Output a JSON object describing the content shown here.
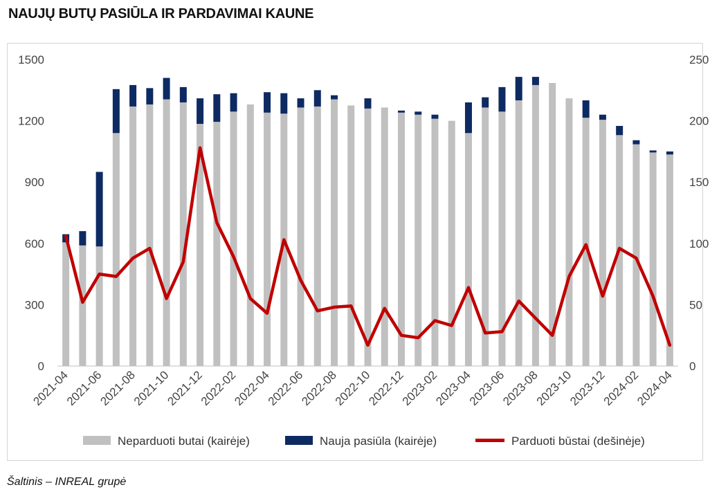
{
  "title": "NAUJŲ BUTŲ PASIŪLA IR PARDAVIMAI KAUNE",
  "source": "Šaltinis – INREAL grupė",
  "chart_data": {
    "type": "bar",
    "categories": [
      "2021-04",
      "2021-05",
      "2021-06",
      "2021-07",
      "2021-08",
      "2021-09",
      "2021-10",
      "2021-11",
      "2021-12",
      "2022-01",
      "2022-02",
      "2022-03",
      "2022-04",
      "2022-05",
      "2022-06",
      "2022-07",
      "2022-08",
      "2022-09",
      "2022-10",
      "2022-11",
      "2022-12",
      "2023-01",
      "2023-02",
      "2023-03",
      "2023-04",
      "2023-05",
      "2023-06",
      "2023-07",
      "2023-08",
      "2023-09",
      "2023-10",
      "2023-11",
      "2023-12",
      "2024-01",
      "2024-02",
      "2024-03",
      "2024-04"
    ],
    "tick_labels": [
      "2021-04",
      "2021-06",
      "2021-08",
      "2021-10",
      "2021-12",
      "2022-02",
      "2022-04",
      "2022-06",
      "2022-08",
      "2022-10",
      "2022-12",
      "2023-02",
      "2023-04",
      "2023-06",
      "2023-08",
      "2023-10",
      "2023-12",
      "2024-02",
      "2024-04"
    ],
    "series": [
      {
        "name": "Neparduoti butai (kairėje)",
        "axis": "left",
        "kind": "stacked-bar",
        "color": "#c0c0c0",
        "values": [
          605,
          590,
          585,
          1140,
          1270,
          1280,
          1305,
          1290,
          1185,
          1195,
          1245,
          1280,
          1240,
          1235,
          1265,
          1270,
          1305,
          1275,
          1260,
          1265,
          1240,
          1230,
          1210,
          1200,
          1140,
          1265,
          1245,
          1300,
          1375,
          1385,
          1310,
          1215,
          1205,
          1130,
          1085,
          1045,
          1035
        ]
      },
      {
        "name": "Nauja pasiūla (kairėje)",
        "axis": "left",
        "kind": "stacked-bar",
        "color": "#0d2a62",
        "values": [
          40,
          70,
          365,
          215,
          105,
          80,
          105,
          75,
          125,
          135,
          90,
          0,
          100,
          100,
          45,
          80,
          20,
          0,
          50,
          0,
          10,
          15,
          20,
          0,
          150,
          50,
          120,
          115,
          40,
          0,
          0,
          85,
          25,
          45,
          20,
          10,
          15
        ]
      },
      {
        "name": "Parduoti būstai (dešinėje)",
        "axis": "right",
        "kind": "line",
        "color": "#c00000",
        "values": [
          106,
          52,
          75,
          73,
          88,
          96,
          55,
          85,
          178,
          117,
          89,
          55,
          43,
          103,
          70,
          45,
          48,
          49,
          17,
          47,
          25,
          23,
          37,
          33,
          64,
          27,
          28,
          53,
          39,
          25,
          73,
          99,
          57,
          96,
          88,
          57,
          17
        ]
      }
    ],
    "y_left": {
      "min": 0,
      "max": 1500,
      "ticks": [
        0,
        300,
        600,
        900,
        1200,
        1500
      ]
    },
    "y_right": {
      "min": 0,
      "max": 250,
      "ticks": [
        0,
        50,
        100,
        150,
        200,
        250
      ]
    },
    "grid": false,
    "legend_position": "bottom"
  }
}
